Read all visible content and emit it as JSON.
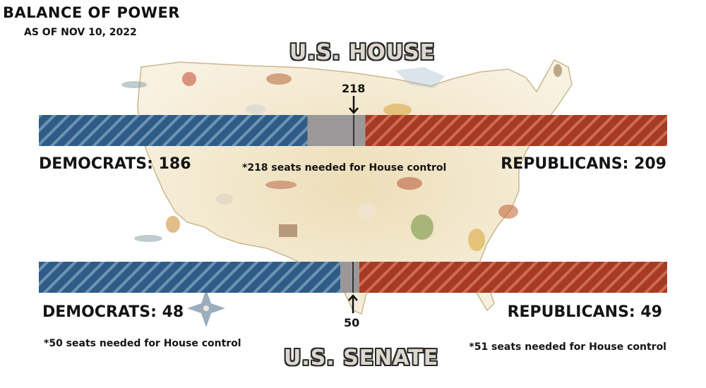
{
  "title": "BALANCE OF POWER",
  "subtitle": "AS OF NOV 10, 2022",
  "colors": {
    "democrats": "#2f5c86",
    "republicans": "#a63a24",
    "undecided": "#9a9898",
    "background_map": "#e8d3a3"
  },
  "chart_data": [
    {
      "type": "bar",
      "orientation": "horizontal-stacked",
      "chamber": "U.S. HOUSE",
      "total_seats": 435,
      "threshold": 218,
      "threshold_label": "218",
      "segments": [
        {
          "name": "Democrats",
          "value": 186,
          "label": "DEMOCRATS: 186"
        },
        {
          "name": "Undecided",
          "value": 40
        },
        {
          "name": "Republicans",
          "value": 209,
          "label": "REPUBLICANS: 209"
        }
      ],
      "notes": [
        "*218 seats needed for House control"
      ]
    },
    {
      "type": "bar",
      "orientation": "horizontal-stacked",
      "chamber": "U.S. SENATE",
      "total_seats": 100,
      "threshold": 50,
      "threshold_label": "50",
      "segments": [
        {
          "name": "Democrats",
          "value": 48,
          "label": "DEMOCRATS: 48"
        },
        {
          "name": "Undecided",
          "value": 3
        },
        {
          "name": "Republicans",
          "value": 49,
          "label": "REPUBLICANS: 49"
        }
      ],
      "notes": [
        "*50 seats needed for House control",
        "*51 seats needed for House control"
      ]
    }
  ]
}
